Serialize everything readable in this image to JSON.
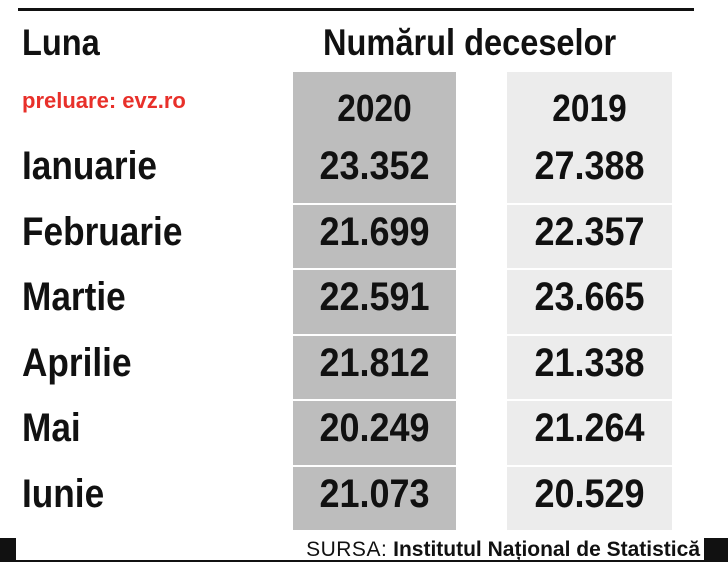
{
  "chart_data": {
    "type": "table",
    "column_header": "Luna",
    "group_header": "Numărul deceselor",
    "credit": "preluare: evz.ro",
    "years": [
      "2020",
      "2019"
    ],
    "rows": [
      {
        "month": "Ianuarie",
        "v2020": "23.352",
        "v2019": "27.388"
      },
      {
        "month": "Februarie",
        "v2020": "21.699",
        "v2019": "22.357"
      },
      {
        "month": "Martie",
        "v2020": "22.591",
        "v2019": "23.665"
      },
      {
        "month": "Aprilie",
        "v2020": "21.812",
        "v2019": "21.338"
      },
      {
        "month": "Mai",
        "v2020": "20.249",
        "v2019": "21.264"
      },
      {
        "month": "Iunie",
        "v2020": "21.073",
        "v2019": "20.529"
      }
    ],
    "source_label": "SURSA:",
    "source_org": "Institutul Național de Statistică"
  },
  "colors": {
    "col_2020_bg": "#bdbdbd",
    "col_2019_bg": "#ececec",
    "credit": "#e8302a",
    "text": "#111111"
  }
}
